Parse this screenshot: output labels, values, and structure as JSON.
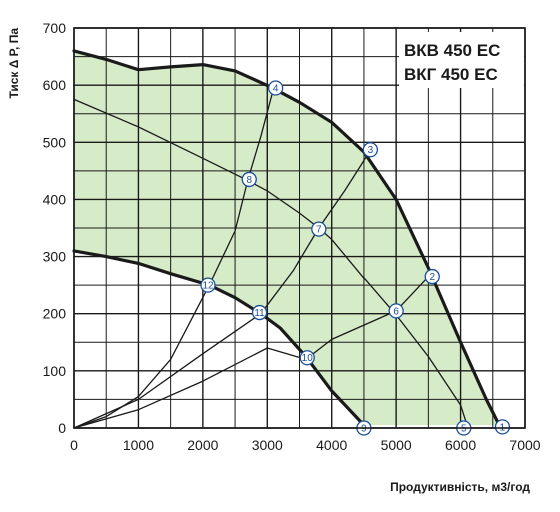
{
  "chart_data": {
    "type": "line",
    "title_lines": [
      "ВКВ 450 ЕС",
      "ВКГ 450 ЕС"
    ],
    "xlabel": "Продуктивність, м3/год",
    "ylabel": "Тиск Δ Р, Па",
    "xlim": [
      0,
      7000
    ],
    "ylim": [
      0,
      700
    ],
    "x_ticks": [
      "0",
      "1000",
      "2000",
      "3000",
      "4000",
      "5000",
      "6000",
      "7000"
    ],
    "y_ticks": [
      "0",
      "100",
      "200",
      "300",
      "400",
      "500",
      "600",
      "700"
    ],
    "grid": true,
    "colors": {
      "fill": "#d6ebc8",
      "curve": "#1a1a1a",
      "marker": "#1a4e9c",
      "grid": "#1a1a1a"
    },
    "series": [
      {
        "values": [
          [
            0,
            660
          ],
          [
            500,
            645
          ],
          [
            1000,
            627
          ],
          [
            1500,
            632
          ],
          [
            2000,
            636
          ],
          [
            2500,
            625
          ],
          [
            3050,
            597
          ],
          [
            3500,
            570
          ],
          [
            4000,
            535
          ],
          [
            4500,
            483
          ],
          [
            5000,
            400
          ],
          [
            5500,
            280
          ],
          [
            6000,
            150
          ],
          [
            6400,
            50
          ],
          [
            6600,
            5
          ]
        ]
      },
      {
        "values": [
          [
            0,
            575
          ],
          [
            1000,
            527
          ],
          [
            2000,
            472
          ],
          [
            2700,
            433
          ],
          [
            3000,
            415
          ],
          [
            3500,
            376
          ],
          [
            3800,
            350
          ],
          [
            4000,
            330
          ],
          [
            4500,
            262
          ],
          [
            4500,
            263
          ],
          [
            5000,
            198
          ],
          [
            5500,
            125
          ],
          [
            6000,
            40
          ],
          [
            6100,
            5
          ]
        ]
      },
      {
        "values": [
          [
            0,
            310
          ],
          [
            500,
            300
          ],
          [
            1000,
            288
          ],
          [
            1500,
            270
          ],
          [
            2100,
            250
          ],
          [
            2500,
            228
          ],
          [
            2900,
            200
          ],
          [
            3200,
            175
          ],
          [
            3600,
            125
          ],
          [
            4000,
            65
          ],
          [
            4500,
            5
          ]
        ]
      },
      {
        "values": [
          [
            0,
            0
          ],
          [
            500,
            20
          ],
          [
            1000,
            55
          ],
          [
            1500,
            120
          ],
          [
            2100,
            250
          ],
          [
            2500,
            345
          ],
          [
            2700,
            435
          ],
          [
            2900,
            510
          ],
          [
            3100,
            595
          ]
        ]
      },
      {
        "values": [
          [
            0,
            0
          ],
          [
            1000,
            50
          ],
          [
            2000,
            130
          ],
          [
            2900,
            200
          ],
          [
            3400,
            275
          ],
          [
            3800,
            350
          ],
          [
            4200,
            415
          ],
          [
            4500,
            468
          ],
          [
            4600,
            487
          ]
        ]
      },
      {
        "values": [
          [
            0,
            0
          ],
          [
            1000,
            32
          ],
          [
            2000,
            82
          ],
          [
            3000,
            140
          ],
          [
            3600,
            120
          ],
          [
            4000,
            155
          ],
          [
            4500,
            180
          ],
          [
            5000,
            205
          ],
          [
            5500,
            265
          ]
        ]
      }
    ],
    "points": [
      {
        "label": "1",
        "x": 6650,
        "y": 2
      },
      {
        "label": "2",
        "x": 5560,
        "y": 265
      },
      {
        "label": "3",
        "x": 4600,
        "y": 487
      },
      {
        "label": "4",
        "x": 3130,
        "y": 595
      },
      {
        "label": "5",
        "x": 6050,
        "y": 0
      },
      {
        "label": "6",
        "x": 5000,
        "y": 205
      },
      {
        "label": "7",
        "x": 3800,
        "y": 348
      },
      {
        "label": "8",
        "x": 2720,
        "y": 435
      },
      {
        "label": "9",
        "x": 4500,
        "y": 0
      },
      {
        "label": "10",
        "x": 3620,
        "y": 123
      },
      {
        "label": "11",
        "x": 2880,
        "y": 202
      },
      {
        "label": "12",
        "x": 2080,
        "y": 250
      }
    ]
  }
}
